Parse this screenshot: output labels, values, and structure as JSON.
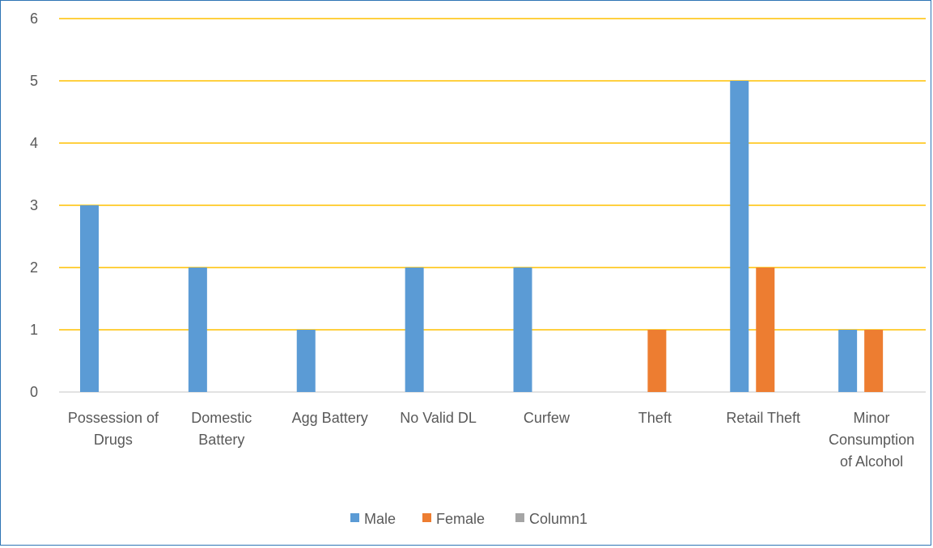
{
  "chart_data": {
    "type": "bar",
    "categories": [
      [
        "Possession of",
        "Drugs"
      ],
      [
        "Domestic",
        "Battery"
      ],
      [
        "Agg Battery"
      ],
      [
        "No Valid DL"
      ],
      [
        "Curfew"
      ],
      [
        "Theft"
      ],
      [
        "Retail Theft"
      ],
      [
        "Minor",
        "Consumption",
        "of Alcohol"
      ]
    ],
    "series": [
      {
        "name": "Male",
        "color": "#5b9bd5",
        "values": [
          3,
          2,
          1,
          2,
          2,
          0,
          5,
          1
        ]
      },
      {
        "name": "Female",
        "color": "#ed7d31",
        "values": [
          0,
          0,
          0,
          0,
          0,
          1,
          2,
          1
        ]
      },
      {
        "name": "Column1",
        "color": "#a5a5a5",
        "values": [
          0,
          0,
          0,
          0,
          0,
          0,
          0,
          0
        ]
      }
    ],
    "ylim": [
      0,
      6
    ],
    "yticks": [
      "0",
      "1",
      "2",
      "3",
      "4",
      "5",
      "6"
    ],
    "grid": true,
    "grid_color": "#ffc000",
    "legend_position": "bottom",
    "title": "",
    "xlabel": "",
    "ylabel": ""
  }
}
